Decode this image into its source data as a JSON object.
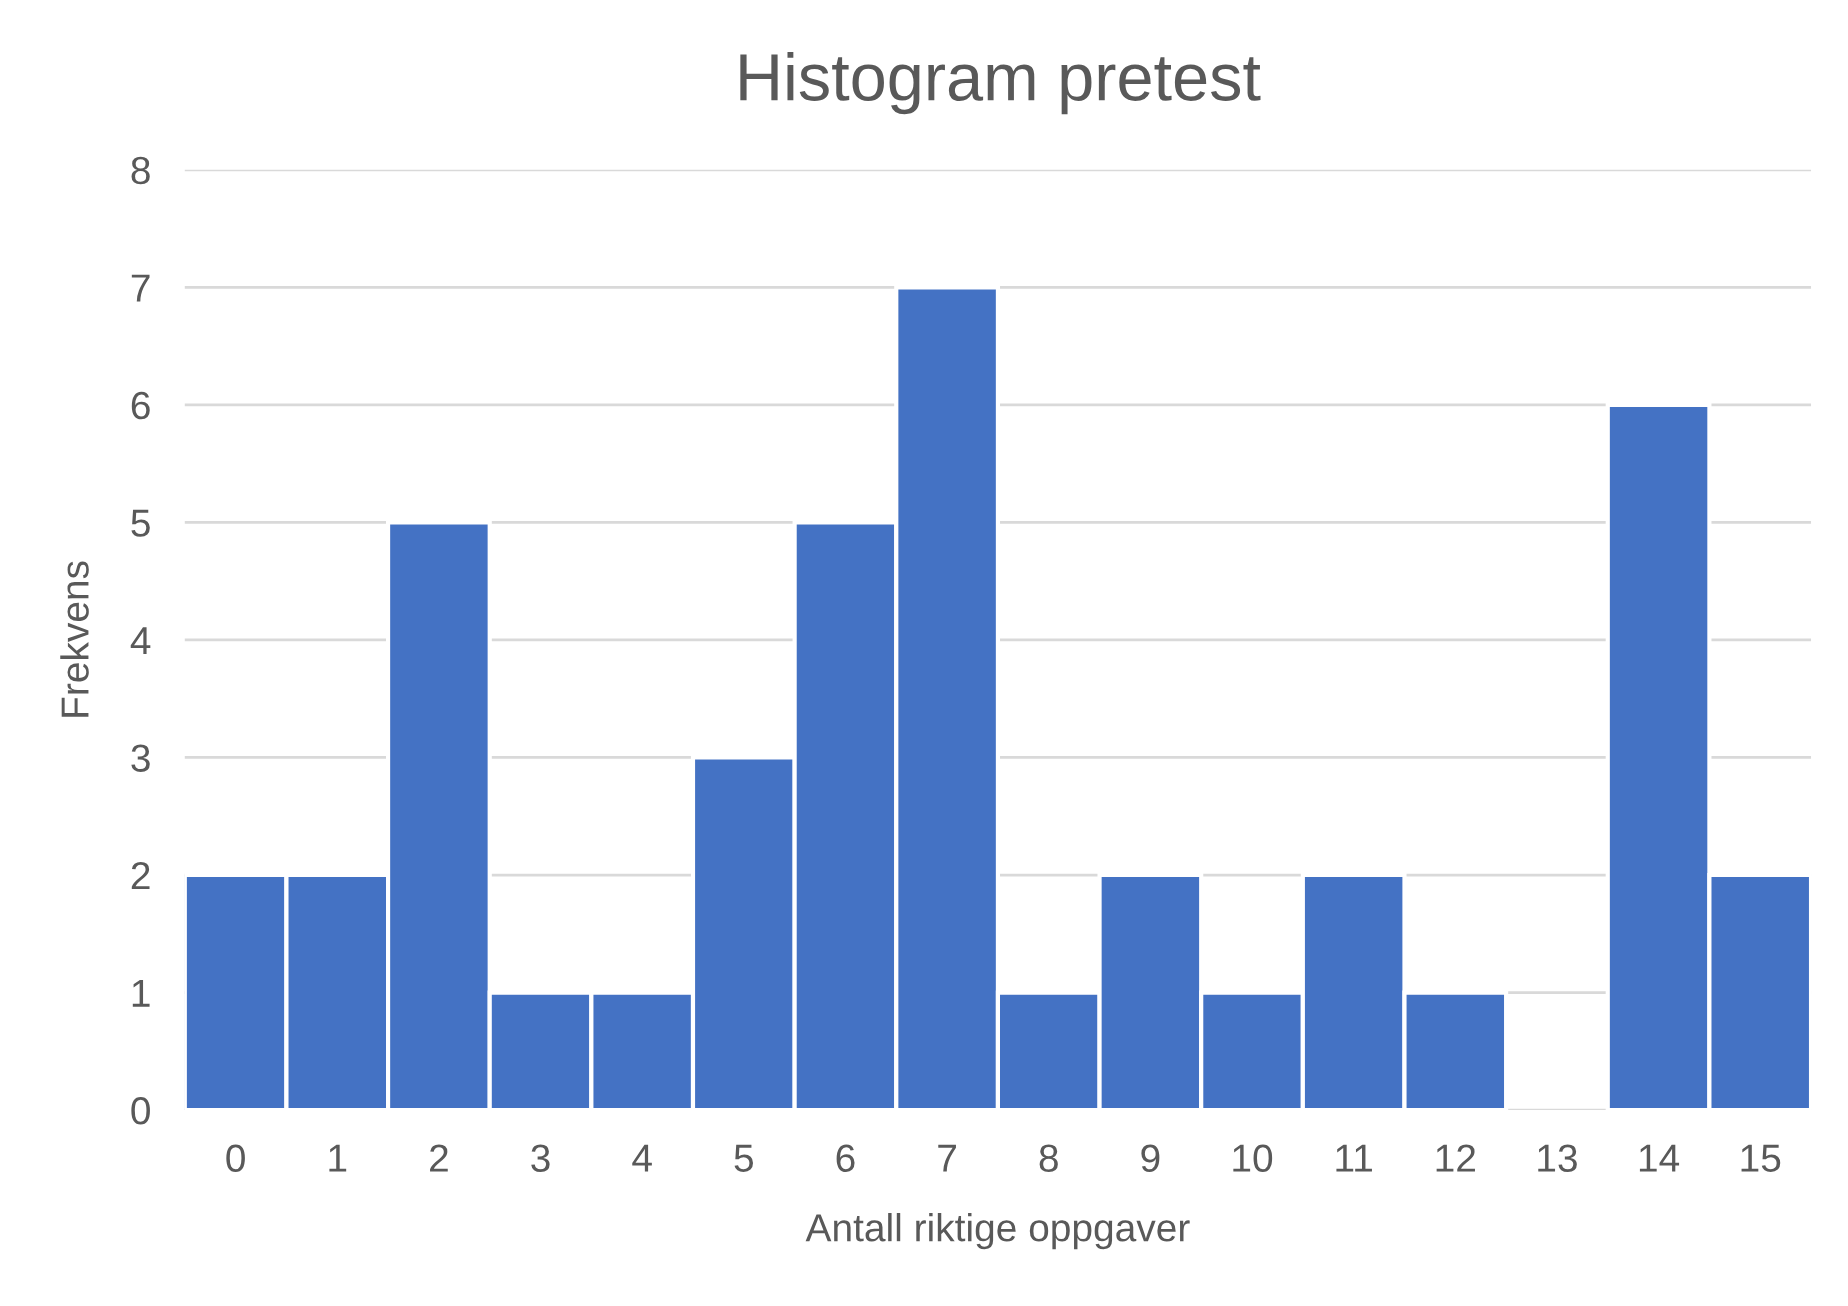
{
  "chart_data": {
    "type": "bar",
    "title": "Histogram pretest",
    "xlabel": "Antall riktige oppgaver",
    "ylabel": "Frekvens",
    "categories": [
      "0",
      "1",
      "2",
      "3",
      "4",
      "5",
      "6",
      "7",
      "8",
      "9",
      "10",
      "11",
      "12",
      "13",
      "14",
      "15"
    ],
    "values": [
      2,
      2,
      5,
      1,
      1,
      3,
      5,
      7,
      1,
      2,
      1,
      2,
      1,
      0,
      6,
      2
    ],
    "color": "#4472c4",
    "ylim": [
      0,
      8
    ],
    "yticks": [
      0,
      1,
      2,
      3,
      4,
      5,
      6,
      7,
      8
    ],
    "grid": "y"
  }
}
